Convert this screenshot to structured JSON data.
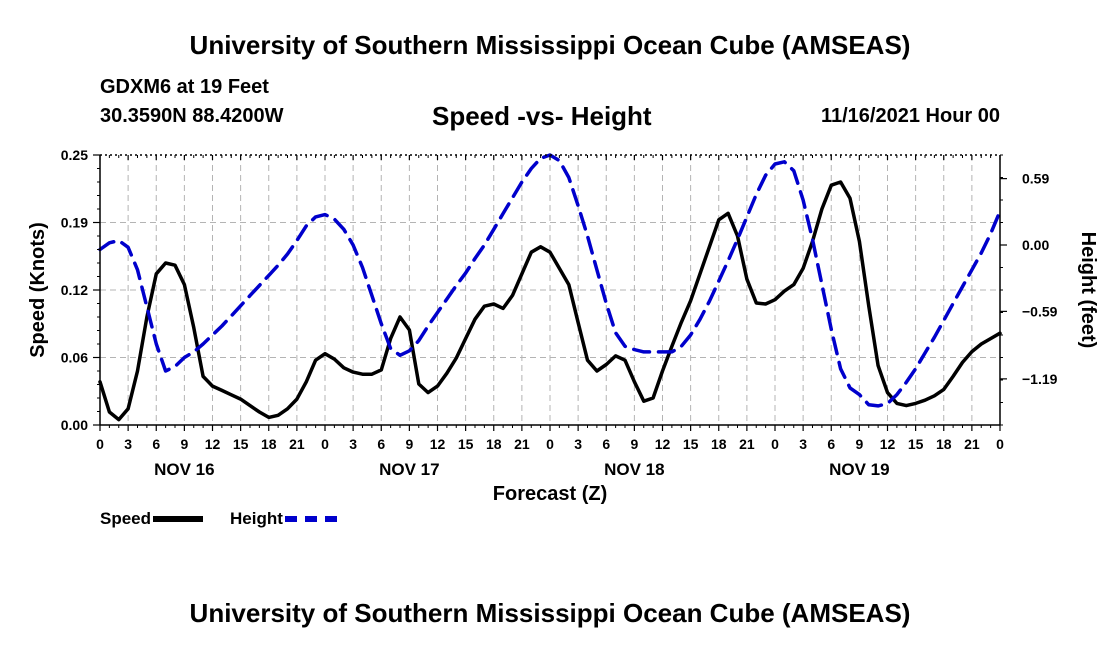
{
  "header": {
    "title": "University of Southern Mississippi Ocean Cube (AMSEAS)",
    "station": "GDXM6 at 19 Feet",
    "coords": "30.3590N  88.4200W",
    "subtitle": "Speed -vs- Height",
    "datetime": "11/16/2021 Hour 00"
  },
  "footer": {
    "title": "University of Southern Mississippi Ocean Cube (AMSEAS)"
  },
  "legend": {
    "speed_label": "Speed",
    "height_label": "Height"
  },
  "colors": {
    "speed": "#000000",
    "height": "#0000cc",
    "grid": "#b4b4b4"
  },
  "chart_data": {
    "type": "line",
    "xlabel": "Forecast (Z)",
    "ylabel": "Speed (Knots)",
    "y2label": "Height (feet)",
    "x_range_hours": [
      0,
      96
    ],
    "x_tick_labels": [
      "0",
      "3",
      "6",
      "9",
      "12",
      "15",
      "18",
      "21",
      "0",
      "3",
      "6",
      "9",
      "12",
      "15",
      "18",
      "21",
      "0",
      "3",
      "6",
      "9",
      "12",
      "15",
      "18",
      "21",
      "0",
      "3",
      "6",
      "9",
      "12",
      "15",
      "18",
      "21",
      "0"
    ],
    "day_labels": [
      {
        "hour": 9,
        "label": "NOV 16"
      },
      {
        "hour": 33,
        "label": "NOV 17"
      },
      {
        "hour": 57,
        "label": "NOV 18"
      },
      {
        "hour": 81,
        "label": "NOV 19"
      }
    ],
    "ylim": [
      0,
      0.25
    ],
    "y_ticks": [
      0,
      0.0625,
      0.125,
      0.1875,
      0.25
    ],
    "y_tick_labels": [
      "0.00",
      "0.06",
      "0.12",
      "0.19",
      "0.25"
    ],
    "y2lim": [
      -1.6,
      0.8
    ],
    "y2_ticks": [
      -1.19,
      -0.59,
      0,
      0.59
    ],
    "y2_tick_labels": [
      "−1.19",
      "−0.59",
      "0.00",
      "0.59"
    ],
    "grid": true,
    "series": [
      {
        "name": "Speed",
        "axis": "left",
        "style": "solid",
        "x": [
          0,
          1,
          2,
          3,
          4,
          5,
          6,
          7,
          8,
          9,
          10,
          11,
          12,
          13,
          14,
          15,
          16,
          17,
          18,
          19,
          20,
          21,
          22,
          23,
          24,
          25,
          26,
          27,
          28,
          29,
          30,
          31,
          32,
          33,
          34,
          35,
          36,
          37,
          38,
          39,
          40,
          41,
          42,
          43,
          44,
          45,
          46,
          47,
          48,
          49,
          50,
          51,
          52,
          53,
          54,
          55,
          56,
          57,
          58,
          59,
          60,
          61,
          62,
          63,
          64,
          65,
          66,
          67,
          68,
          69,
          70,
          71,
          72,
          73,
          74,
          75,
          76,
          77,
          78,
          79,
          80,
          81,
          82,
          83,
          84,
          85,
          86,
          87,
          88,
          89,
          90,
          91,
          92,
          93,
          94,
          95,
          96
        ],
        "values": [
          0.04,
          0.012,
          0.005,
          0.015,
          0.05,
          0.1,
          0.14,
          0.15,
          0.148,
          0.13,
          0.09,
          0.045,
          0.036,
          0.032,
          0.028,
          0.024,
          0.018,
          0.012,
          0.007,
          0.009,
          0.015,
          0.024,
          0.04,
          0.06,
          0.066,
          0.061,
          0.053,
          0.049,
          0.047,
          0.047,
          0.051,
          0.08,
          0.1,
          0.088,
          0.038,
          0.03,
          0.036,
          0.048,
          0.062,
          0.08,
          0.098,
          0.11,
          0.112,
          0.108,
          0.12,
          0.14,
          0.16,
          0.165,
          0.16,
          0.145,
          0.13,
          0.095,
          0.06,
          0.05,
          0.056,
          0.064,
          0.06,
          0.04,
          0.022,
          0.025,
          0.05,
          0.073,
          0.095,
          0.115,
          0.14,
          0.165,
          0.19,
          0.196,
          0.175,
          0.135,
          0.113,
          0.112,
          0.116,
          0.124,
          0.13,
          0.145,
          0.17,
          0.2,
          0.222,
          0.225,
          0.21,
          0.17,
          0.11,
          0.055,
          0.03,
          0.02,
          0.018,
          0.02,
          0.023,
          0.027,
          0.033,
          0.045,
          0.058,
          0.068,
          0.075,
          0.08,
          0.085
        ]
      },
      {
        "name": "Height",
        "axis": "right",
        "style": "dashed",
        "x": [
          0,
          1,
          2,
          3,
          4,
          5,
          6,
          7,
          8,
          9,
          10,
          11,
          12,
          13,
          14,
          15,
          16,
          17,
          18,
          19,
          20,
          21,
          22,
          23,
          24,
          25,
          26,
          27,
          28,
          29,
          30,
          31,
          32,
          33,
          34,
          35,
          36,
          37,
          38,
          39,
          40,
          41,
          42,
          43,
          44,
          45,
          46,
          47,
          48,
          49,
          50,
          51,
          52,
          53,
          54,
          55,
          56,
          57,
          58,
          59,
          60,
          61,
          62,
          63,
          64,
          65,
          66,
          67,
          68,
          69,
          70,
          71,
          72,
          73,
          74,
          75,
          76,
          77,
          78,
          79,
          80,
          81,
          82,
          83,
          84,
          85,
          86,
          87,
          88,
          89,
          90,
          91,
          92,
          93,
          94,
          95,
          96
        ],
        "values": [
          -0.04,
          0.02,
          0.04,
          -0.02,
          -0.22,
          -0.55,
          -0.88,
          -1.12,
          -1.08,
          -1.0,
          -0.95,
          -0.88,
          -0.8,
          -0.72,
          -0.63,
          -0.54,
          -0.45,
          -0.36,
          -0.27,
          -0.18,
          -0.08,
          0.04,
          0.17,
          0.25,
          0.27,
          0.23,
          0.14,
          0.0,
          -0.2,
          -0.45,
          -0.7,
          -0.92,
          -0.98,
          -0.94,
          -0.85,
          -0.72,
          -0.6,
          -0.48,
          -0.36,
          -0.25,
          -0.12,
          0.0,
          0.14,
          0.28,
          0.42,
          0.56,
          0.68,
          0.77,
          0.8,
          0.75,
          0.6,
          0.35,
          0.08,
          -0.22,
          -0.52,
          -0.78,
          -0.9,
          -0.93,
          -0.95,
          -0.95,
          -0.95,
          -0.95,
          -0.9,
          -0.8,
          -0.66,
          -0.5,
          -0.32,
          -0.14,
          0.05,
          0.25,
          0.45,
          0.62,
          0.72,
          0.74,
          0.66,
          0.4,
          0.05,
          -0.35,
          -0.75,
          -1.1,
          -1.27,
          -1.33,
          -1.42,
          -1.43,
          -1.41,
          -1.33,
          -1.22,
          -1.1,
          -0.96,
          -0.82,
          -0.67,
          -0.52,
          -0.37,
          -0.22,
          -0.07,
          0.1,
          0.3
        ]
      }
    ]
  }
}
